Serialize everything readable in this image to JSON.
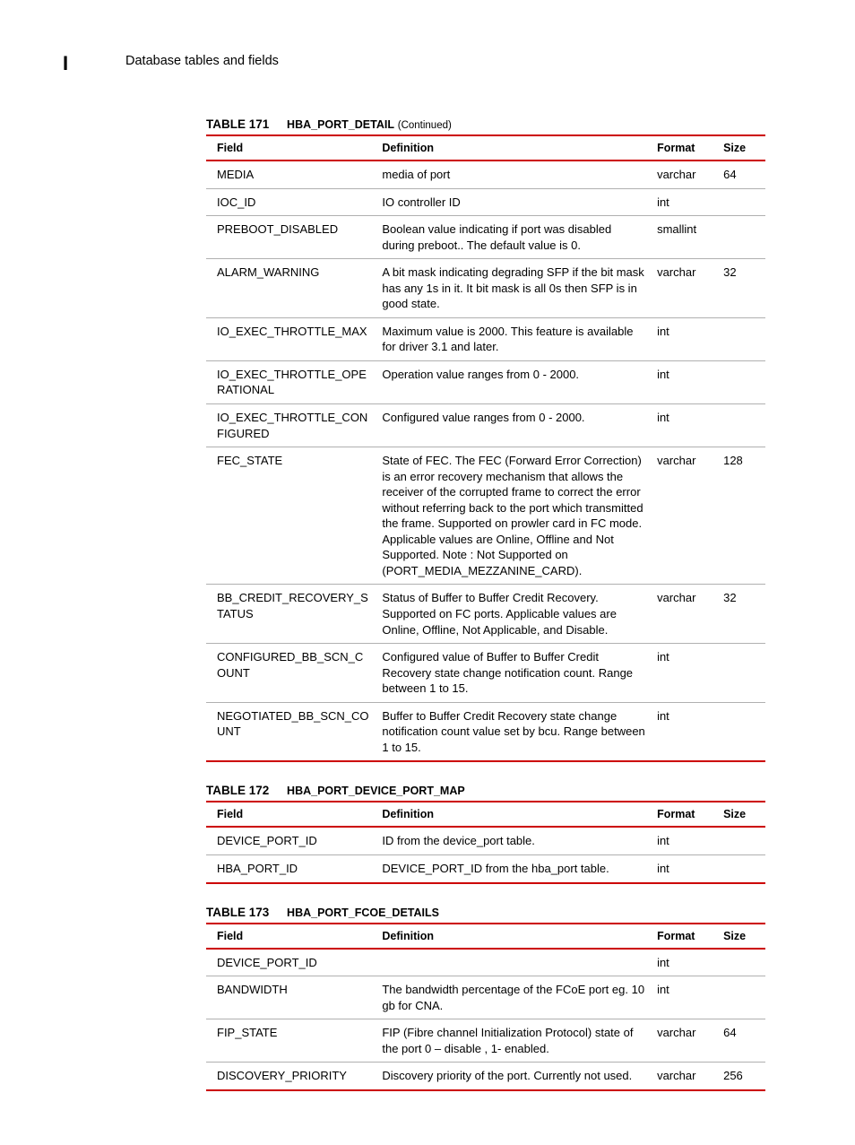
{
  "header": {
    "letter": "I",
    "title": "Database tables and fields"
  },
  "tables": [
    {
      "number": "TABLE 171",
      "name": "HBA_PORT_DETAIL",
      "continued": "(Continued)",
      "columns": [
        "Field",
        "Definition",
        "Format",
        "Size"
      ],
      "rows": [
        {
          "field": "MEDIA",
          "def": "media of port",
          "fmt": "varchar",
          "size": "64"
        },
        {
          "field": "IOC_ID",
          "def": "IO controller ID",
          "fmt": "int",
          "size": ""
        },
        {
          "field": "PREBOOT_DISABLED",
          "def": "Boolean value indicating if port was disabled during preboot.. The default value is 0.",
          "fmt": "smallint",
          "size": ""
        },
        {
          "field": "ALARM_WARNING",
          "def": "A bit mask indicating degrading SFP if the bit mask has any 1s in it. It bit mask is all 0s then SFP is in good state.",
          "fmt": "varchar",
          "size": "32"
        },
        {
          "field": "IO_EXEC_THROTTLE_MAX",
          "def": "Maximum value is 2000. This feature is available for driver 3.1 and later.",
          "fmt": "int",
          "size": ""
        },
        {
          "field": "IO_EXEC_THROTTLE_OPERATIONAL",
          "def": "Operation value ranges from 0 - 2000.",
          "fmt": "int",
          "size": ""
        },
        {
          "field": "IO_EXEC_THROTTLE_CONFIGURED",
          "def": "Configured value ranges from 0 - 2000.",
          "fmt": "int",
          "size": ""
        },
        {
          "field": "FEC_STATE",
          "def": "State of FEC. The FEC (Forward Error Correction) is an error recovery mechanism that allows the receiver of the corrupted frame to correct the error without referring back to the port which transmitted the frame. Supported on prowler card  in FC mode. Applicable values are Online, Offline and Not Supported. Note : Not Supported on (PORT_MEDIA_MEZZANINE_CARD).",
          "fmt": "varchar",
          "size": "128"
        },
        {
          "field": "BB_CREDIT_RECOVERY_STATUS",
          "def": "Status of Buffer to Buffer Credit Recovery. Supported on FC ports. Applicable values are Online, Offline, Not Applicable, and Disable.",
          "fmt": "varchar",
          "size": "32"
        },
        {
          "field": "CONFIGURED_BB_SCN_COUNT",
          "def": "Configured value of Buffer to Buffer Credit Recovery state change notification count. Range between 1 to 15.",
          "fmt": "int",
          "size": ""
        },
        {
          "field": "NEGOTIATED_BB_SCN_COUNT",
          "def": "Buffer to Buffer Credit Recovery state change notification count value set by bcu. Range between 1 to 15.",
          "fmt": "int",
          "size": ""
        }
      ]
    },
    {
      "number": "TABLE 172",
      "name": "HBA_PORT_DEVICE_PORT_MAP",
      "continued": "",
      "columns": [
        "Field",
        "Definition",
        "Format",
        "Size"
      ],
      "rows": [
        {
          "field": "DEVICE_PORT_ID",
          "def": "ID  from the device_port table.",
          "fmt": "int",
          "size": ""
        },
        {
          "field": "HBA_PORT_ID",
          "def": "DEVICE_PORT_ID from the hba_port table.",
          "fmt": "int",
          "size": ""
        }
      ]
    },
    {
      "number": "TABLE 173",
      "name": "HBA_PORT_FCOE_DETAILS",
      "continued": "",
      "columns": [
        "Field",
        "Definition",
        "Format",
        "Size"
      ],
      "rows": [
        {
          "field": "DEVICE_PORT_ID",
          "def": "",
          "fmt": "int",
          "size": ""
        },
        {
          "field": "BANDWIDTH",
          "def": "The bandwidth percentage of the FCoE port eg. 10 gb for CNA.",
          "fmt": "int",
          "size": ""
        },
        {
          "field": "FIP_STATE",
          "def": "FIP (Fibre channel Initialization Protocol) state of the port 0 – disable , 1- enabled.",
          "fmt": "varchar",
          "size": "64"
        },
        {
          "field": "DISCOVERY_PRIORITY",
          "def": "Discovery priority of the port. Currently not used.",
          "fmt": "varchar",
          "size": "256"
        }
      ]
    }
  ],
  "style": {
    "accent_color": "#cc0000",
    "row_border_color": "#b0b0b0",
    "text_color": "#000000",
    "background_color": "#ffffff",
    "body_font_size": 13,
    "header_font_size": 12.5,
    "caption_font_size": 13.5
  }
}
